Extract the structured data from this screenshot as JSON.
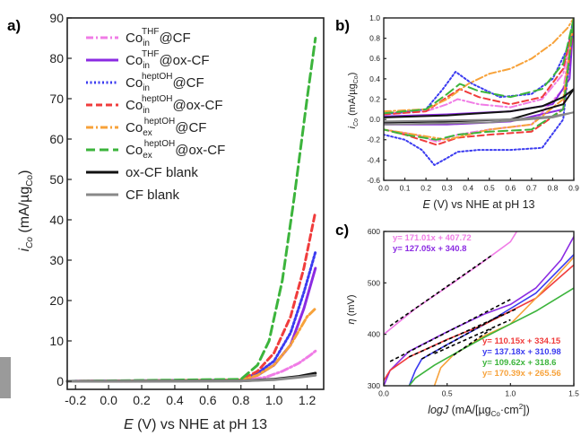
{
  "panels": {
    "a": "a)",
    "b": "b)",
    "c": "c)"
  },
  "legend": [
    {
      "base": "Co",
      "sub": "in",
      "sup": "THF",
      "suffix": "@CF",
      "color": "#f07ce6",
      "dash": "dashdot"
    },
    {
      "base": "Co",
      "sub": "in",
      "sup": "THF",
      "suffix": "@ox-CF",
      "color": "#8b2be2",
      "dash": "solid"
    },
    {
      "base": "Co",
      "sub": "in",
      "sup": "heptOH",
      "suffix": "@CF",
      "color": "#3b3bf0",
      "dash": "dot"
    },
    {
      "base": "Co",
      "sub": "in",
      "sup": "heptOH",
      "suffix": "@ox-CF",
      "color": "#f03c3c",
      "dash": "dash"
    },
    {
      "base": "Co",
      "sub": "ex",
      "sup": "heptOH",
      "suffix": "@CF",
      "color": "#f7a23a",
      "dash": "dashdot"
    },
    {
      "base": "Co",
      "sub": "ex",
      "sup": "heptOH",
      "suffix": "@ox-CF",
      "color": "#3cb43c",
      "dash": "longdash"
    },
    {
      "base": "ox-CF blank",
      "sub": "",
      "sup": "",
      "suffix": "",
      "color": "#111111",
      "dash": "solid"
    },
    {
      "base": "CF blank",
      "sub": "",
      "sup": "",
      "suffix": "",
      "color": "#888888",
      "dash": "solid"
    }
  ],
  "axes": {
    "a": {
      "ylabel": {
        "i": "i",
        "i_sub": "Co",
        "mid": " (mA/µg",
        "end_sub": "Co",
        "close": ")"
      },
      "xlabel": {
        "E": "E",
        "rest": " (V) vs NHE at pH 13"
      },
      "xticks": [
        "-0.2",
        "0.0",
        "0.2",
        "0.4",
        "0.6",
        "0.8",
        "1.0",
        "1.2"
      ],
      "yticks": [
        "0",
        "10",
        "20",
        "30",
        "40",
        "50",
        "60",
        "70",
        "80",
        "90"
      ]
    },
    "b": {
      "ylabel": {
        "i": "i",
        "i_sub": "Co",
        "mid": " (mA/µg",
        "end_sub": "Co",
        "close": ")"
      },
      "xlabel": {
        "E": "E",
        "rest": " (V) vs NHE at pH 13"
      },
      "xticks": [
        "0.0",
        "0.1",
        "0.2",
        "0.3",
        "0.4",
        "0.5",
        "0.6",
        "0.7",
        "0.8",
        "0.9"
      ],
      "yticks": [
        "-0.6",
        "-0.4",
        "-0.2",
        "0.0",
        "0.2",
        "0.4",
        "0.6",
        "0.8",
        "1.0"
      ]
    },
    "c": {
      "ylabel": {
        "eta": "η",
        "rest": " (mV)"
      },
      "xlabel": {
        "log": "logJ",
        "rest": " (mA/[µg",
        "sub": "Co",
        "tail": "·cm",
        "sup": "2",
        "close": "])"
      },
      "xticks": [
        "0.0",
        "0.5",
        "1.0",
        "1.5"
      ],
      "yticks": [
        "300",
        "400",
        "500",
        "600"
      ]
    }
  },
  "equations": [
    {
      "text": "y= 171.01x + 407.72",
      "color": "#f07ce6"
    },
    {
      "text": "y= 127.05x + 340.8",
      "color": "#8b2be2"
    },
    {
      "text": "y= 110.15x + 334.15",
      "color": "#f03c3c"
    },
    {
      "text": "y= 137.18x + 310.98",
      "color": "#3b3bf0"
    },
    {
      "text": "y= 109.62x + 318.6",
      "color": "#3cb43c"
    },
    {
      "text": "y= 170.39x + 265.56",
      "color": "#f7a23a"
    }
  ],
  "chart_data": [
    {
      "type": "line",
      "panel": "a",
      "xlim": [
        -0.25,
        1.3
      ],
      "ylim": [
        -2,
        90
      ],
      "series": [
        {
          "name": "Co_in^THF@CF",
          "color": "#f07ce6",
          "dash": "dashdot",
          "x": [
            -0.25,
            0.8,
            0.95,
            1.05,
            1.15,
            1.22,
            1.25
          ],
          "y": [
            0,
            0.2,
            1,
            2.5,
            4.5,
            6.5,
            7.5
          ]
        },
        {
          "name": "Co_in^THF@ox-CF",
          "color": "#8b2be2",
          "dash": "solid",
          "x": [
            -0.25,
            0.8,
            0.9,
            1.0,
            1.1,
            1.18,
            1.25
          ],
          "y": [
            0,
            0.3,
            1.5,
            4,
            9,
            18,
            28
          ]
        },
        {
          "name": "Co_in^heptOH@CF",
          "color": "#3b3bf0",
          "dash": "dot",
          "x": [
            -0.25,
            0.8,
            0.9,
            1.0,
            1.1,
            1.18,
            1.25
          ],
          "y": [
            0,
            0.3,
            2,
            5,
            12,
            22,
            32
          ]
        },
        {
          "name": "Co_in^heptOH@ox-CF",
          "color": "#f03c3c",
          "dash": "dash",
          "x": [
            -0.25,
            0.8,
            0.9,
            1.0,
            1.1,
            1.18,
            1.25
          ],
          "y": [
            0,
            0.3,
            2.5,
            7,
            16,
            28,
            42
          ]
        },
        {
          "name": "Co_ex^heptOH@CF",
          "color": "#f7a23a",
          "dash": "dashdot",
          "x": [
            -0.25,
            0.8,
            0.9,
            1.0,
            1.1,
            1.2,
            1.25
          ],
          "y": [
            0,
            0.2,
            1.5,
            4,
            9,
            16,
            18
          ]
        },
        {
          "name": "Co_ex^heptOH@ox-CF",
          "color": "#3cb43c",
          "dash": "longdash",
          "x": [
            -0.25,
            0.8,
            0.9,
            0.97,
            1.05,
            1.12,
            1.2,
            1.25
          ],
          "y": [
            0,
            0.5,
            4,
            10,
            25,
            45,
            70,
            85
          ]
        },
        {
          "name": "ox-CF blank",
          "color": "#111111",
          "dash": "solid",
          "x": [
            -0.25,
            0.8,
            1.0,
            1.15,
            1.25
          ],
          "y": [
            0,
            0.1,
            0.5,
            1.2,
            2
          ]
        },
        {
          "name": "CF blank",
          "color": "#888888",
          "dash": "solid",
          "x": [
            -0.25,
            0.8,
            1.0,
            1.15,
            1.25
          ],
          "y": [
            0,
            0.1,
            0.4,
            1,
            1.5
          ]
        }
      ]
    },
    {
      "type": "line",
      "panel": "b",
      "xlim": [
        0.0,
        0.9
      ],
      "ylim": [
        -0.6,
        1.0
      ],
      "series": [
        {
          "name": "Co_in^THF@CF",
          "color": "#f07ce6",
          "dash": "dashdot",
          "x": [
            0.0,
            0.2,
            0.3,
            0.35,
            0.45,
            0.6,
            0.75,
            0.85,
            0.9,
            0.85,
            0.7,
            0.5,
            0.35,
            0.25,
            0.15,
            0.0
          ],
          "y": [
            0.05,
            0.08,
            0.15,
            0.2,
            0.15,
            0.12,
            0.2,
            0.45,
            0.95,
            0.3,
            -0.05,
            -0.1,
            -0.15,
            -0.22,
            -0.15,
            -0.1
          ]
        },
        {
          "name": "Co_in^THF@ox-CF",
          "color": "#8b2be2",
          "dash": "solid",
          "x": [
            0.0,
            0.3,
            0.6,
            0.8,
            0.88,
            0.9,
            0.85,
            0.6,
            0.3,
            0.0
          ],
          "y": [
            0.03,
            0.05,
            0.08,
            0.15,
            0.4,
            1.0,
            0.1,
            -0.02,
            -0.05,
            -0.05
          ]
        },
        {
          "name": "Co_in^heptOH@CF",
          "color": "#3b3bf0",
          "dash": "dot",
          "x": [
            0.0,
            0.2,
            0.28,
            0.34,
            0.42,
            0.55,
            0.7,
            0.8,
            0.87,
            0.9,
            0.85,
            0.75,
            0.6,
            0.45,
            0.35,
            0.3,
            0.24,
            0.18,
            0.1,
            0.0
          ],
          "y": [
            0.05,
            0.1,
            0.3,
            0.47,
            0.35,
            0.22,
            0.25,
            0.4,
            0.7,
            1.0,
            0.0,
            -0.28,
            -0.3,
            -0.3,
            -0.32,
            -0.38,
            -0.45,
            -0.3,
            -0.2,
            -0.15
          ]
        },
        {
          "name": "Co_in^heptOH@ox-CF",
          "color": "#f03c3c",
          "dash": "dash",
          "x": [
            0.0,
            0.2,
            0.3,
            0.36,
            0.45,
            0.6,
            0.75,
            0.85,
            0.9,
            0.85,
            0.7,
            0.5,
            0.35,
            0.25,
            0.1,
            0.0
          ],
          "y": [
            0.05,
            0.08,
            0.22,
            0.3,
            0.22,
            0.15,
            0.22,
            0.5,
            0.95,
            0.1,
            -0.12,
            -0.15,
            -0.18,
            -0.25,
            -0.15,
            -0.1
          ]
        },
        {
          "name": "Co_ex^heptOH@CF",
          "color": "#f7a23a",
          "dash": "dashdot",
          "x": [
            0.0,
            0.2,
            0.3,
            0.4,
            0.5,
            0.6,
            0.7,
            0.8,
            0.87,
            0.9,
            0.85,
            0.7,
            0.5,
            0.3,
            0.15,
            0.0
          ],
          "y": [
            0.08,
            0.1,
            0.2,
            0.35,
            0.45,
            0.5,
            0.6,
            0.75,
            0.9,
            1.0,
            0.2,
            -0.05,
            -0.1,
            -0.2,
            -0.15,
            -0.1
          ]
        },
        {
          "name": "Co_ex^heptOH@ox-CF",
          "color": "#3cb43c",
          "dash": "longdash",
          "x": [
            0.0,
            0.2,
            0.3,
            0.36,
            0.45,
            0.6,
            0.75,
            0.85,
            0.9,
            0.85,
            0.7,
            0.5,
            0.35,
            0.25,
            0.1,
            0.0
          ],
          "y": [
            0.06,
            0.1,
            0.25,
            0.35,
            0.28,
            0.22,
            0.3,
            0.55,
            1.0,
            0.1,
            -0.1,
            -0.12,
            -0.15,
            -0.2,
            -0.15,
            -0.1
          ]
        },
        {
          "name": "ox-CF blank",
          "color": "#111111",
          "dash": "solid",
          "x": [
            0.0,
            0.3,
            0.6,
            0.75,
            0.85,
            0.9,
            0.85,
            0.6,
            0.3,
            0.0
          ],
          "y": [
            0.02,
            0.04,
            0.08,
            0.13,
            0.22,
            0.3,
            0.15,
            0.0,
            -0.02,
            -0.03
          ]
        },
        {
          "name": "CF blank",
          "color": "#888888",
          "dash": "solid",
          "x": [
            0.0,
            0.3,
            0.6,
            0.8,
            0.9,
            0.8,
            0.5,
            0.0
          ],
          "y": [
            -0.02,
            -0.01,
            0.0,
            0.03,
            0.07,
            0.02,
            -0.03,
            -0.05
          ]
        }
      ]
    },
    {
      "type": "line",
      "panel": "c",
      "xlim": [
        0.0,
        1.5
      ],
      "ylim": [
        300,
        600
      ],
      "series": [
        {
          "name": "Co_in^THF@CF",
          "color": "#f07ce6",
          "dash": "solid",
          "x": [
            0.0,
            0.25,
            0.5,
            0.75,
            1.0,
            1.05
          ],
          "y": [
            400,
            450,
            492,
            535,
            580,
            600
          ]
        },
        {
          "name": "Co_in^THF@ox-CF",
          "color": "#8b2be2",
          "dash": "solid",
          "x": [
            0.0,
            0.05,
            0.2,
            0.5,
            0.8,
            1.0,
            1.2,
            1.4,
            1.5
          ],
          "y": [
            300,
            330,
            367,
            405,
            440,
            458,
            490,
            545,
            590
          ]
        },
        {
          "name": "Co_in^heptOH@CF",
          "color": "#3b3bf0",
          "dash": "solid",
          "x": [
            0.2,
            0.25,
            0.3,
            0.5,
            0.8,
            1.0,
            1.2,
            1.5
          ],
          "y": [
            300,
            330,
            352,
            380,
            420,
            450,
            480,
            555
          ]
        },
        {
          "name": "Co_in^heptOH@ox-CF",
          "color": "#f03c3c",
          "dash": "solid",
          "x": [
            0.0,
            0.05,
            0.2,
            0.5,
            0.8,
            1.0,
            1.2,
            1.5
          ],
          "y": [
            310,
            330,
            356,
            390,
            420,
            445,
            470,
            535
          ]
        },
        {
          "name": "Co_ex^heptOH@CF",
          "color": "#f7a23a",
          "dash": "solid",
          "x": [
            0.4,
            0.45,
            0.55,
            0.8,
            1.0,
            1.2,
            1.5
          ],
          "y": [
            300,
            335,
            360,
            398,
            420,
            470,
            550
          ]
        },
        {
          "name": "Co_ex^heptOH@ox-CF",
          "color": "#3cb43c",
          "dash": "solid",
          "x": [
            0.2,
            0.25,
            0.4,
            0.6,
            0.8,
            1.0,
            1.2,
            1.5
          ],
          "y": [
            300,
            315,
            340,
            368,
            395,
            420,
            445,
            490
          ]
        }
      ]
    }
  ]
}
